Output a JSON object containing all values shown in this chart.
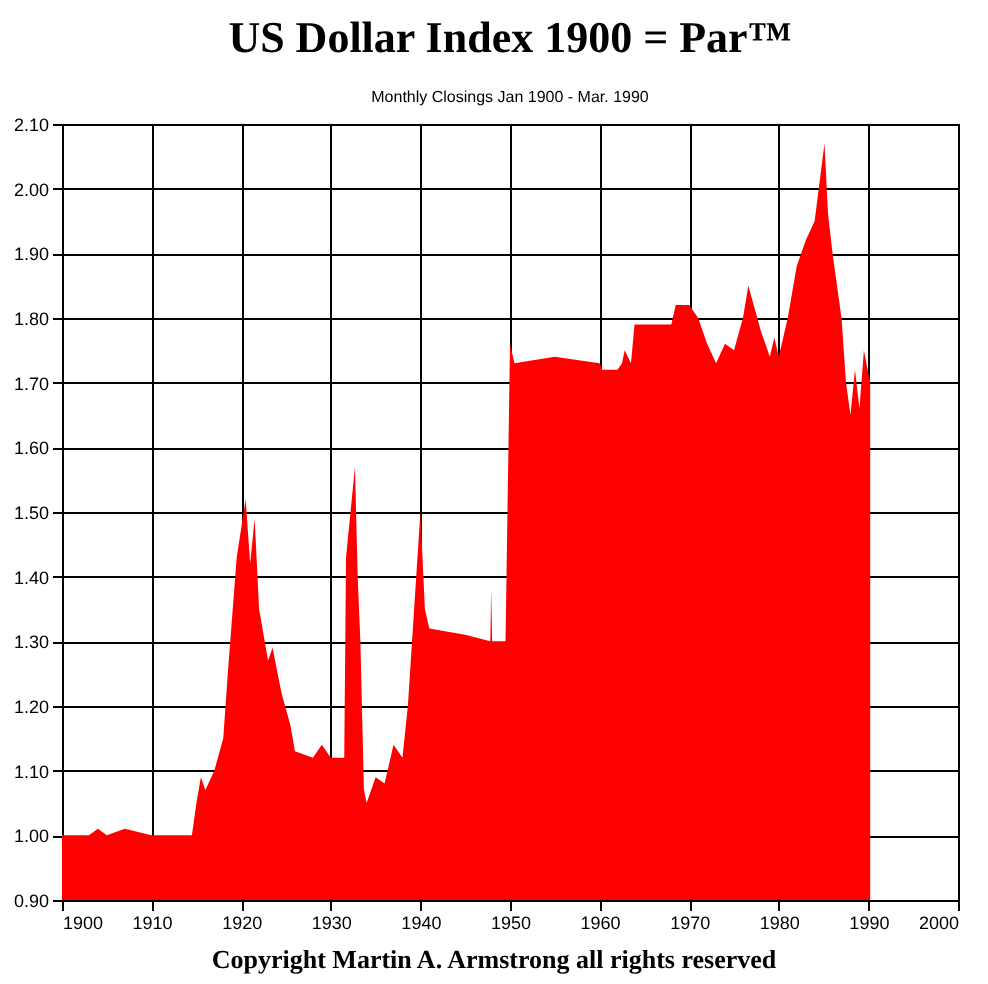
{
  "chart_data": {
    "type": "area",
    "title": "US Dollar Index 1900 = Par™",
    "subtitle": "Monthly Closings Jan 1900 - Mar. 1990",
    "annotations": [
      "Copyright Martin A. Armstrong all rights reserved"
    ],
    "x": [
      1900,
      1903,
      1904,
      1905,
      1907,
      1910,
      1914.5,
      1915,
      1915.5,
      1916,
      1917,
      1918,
      1918.5,
      1919.5,
      1920.5,
      1921,
      1921.5,
      1922,
      1923,
      1923.5,
      1924.5,
      1925.5,
      1926,
      1928,
      1929,
      1930,
      1931.5,
      1931.7,
      1932.7,
      1933,
      1933.3,
      1933.7,
      1934,
      1935,
      1936,
      1937,
      1938,
      1938.6,
      1940,
      1940.5,
      1941,
      1945,
      1947.8,
      1947.9,
      1948,
      1949.5,
      1950,
      1950.5,
      1955,
      1960,
      1960.3,
      1962,
      1962.5,
      1962.8,
      1963.5,
      1963.9,
      1968,
      1968.5,
      1970,
      1971,
      1972,
      1973,
      1974,
      1975,
      1976,
      1976.6,
      1978,
      1979,
      1979.5,
      1980,
      1981,
      1982,
      1983,
      1984,
      1985.1,
      1985.5,
      1986,
      1987,
      1987.5,
      1988,
      1988.5,
      1989,
      1989.5,
      1990.2
    ],
    "values": [
      1.0,
      1.0,
      1.01,
      1.0,
      1.01,
      1.0,
      1.0,
      1.05,
      1.09,
      1.07,
      1.1,
      1.15,
      1.25,
      1.43,
      1.52,
      1.42,
      1.49,
      1.35,
      1.27,
      1.29,
      1.22,
      1.17,
      1.13,
      1.12,
      1.14,
      1.12,
      1.12,
      1.43,
      1.57,
      1.4,
      1.3,
      1.07,
      1.05,
      1.09,
      1.08,
      1.14,
      1.12,
      1.2,
      1.5,
      1.35,
      1.32,
      1.31,
      1.3,
      1.38,
      1.3,
      1.3,
      1.76,
      1.73,
      1.74,
      1.73,
      1.72,
      1.72,
      1.73,
      1.75,
      1.73,
      1.79,
      1.79,
      1.82,
      1.82,
      1.8,
      1.76,
      1.73,
      1.76,
      1.75,
      1.8,
      1.85,
      1.78,
      1.74,
      1.77,
      1.74,
      1.8,
      1.88,
      1.92,
      1.95,
      2.07,
      1.96,
      1.9,
      1.8,
      1.7,
      1.65,
      1.72,
      1.66,
      1.75,
      1.7
    ],
    "color": "#ff0000",
    "xlim": [
      1900,
      2000
    ],
    "xticks": [
      1900,
      1910,
      1920,
      1930,
      1940,
      1950,
      1960,
      1970,
      1980,
      1990,
      2000
    ],
    "ylim": [
      0.9,
      2.1
    ],
    "yticks": [
      {
        "value": 0.9,
        "label": "0.90"
      },
      {
        "value": 1.0,
        "label": "1.00"
      },
      {
        "value": 1.1,
        "label": "1.10"
      },
      {
        "value": 1.2,
        "label": "1.20"
      },
      {
        "value": 1.3,
        "label": "1.30"
      },
      {
        "value": 1.4,
        "label": "1.40"
      },
      {
        "value": 1.5,
        "label": "1.50"
      },
      {
        "value": 1.6,
        "label": "1.60"
      },
      {
        "value": 1.7,
        "label": "1.70"
      },
      {
        "value": 1.8,
        "label": "1.80"
      },
      {
        "value": 1.9,
        "label": "1.90"
      },
      {
        "value": 2.0,
        "label": "2.00"
      },
      {
        "value": 2.1,
        "label": "2.10"
      }
    ],
    "grid": true
  }
}
